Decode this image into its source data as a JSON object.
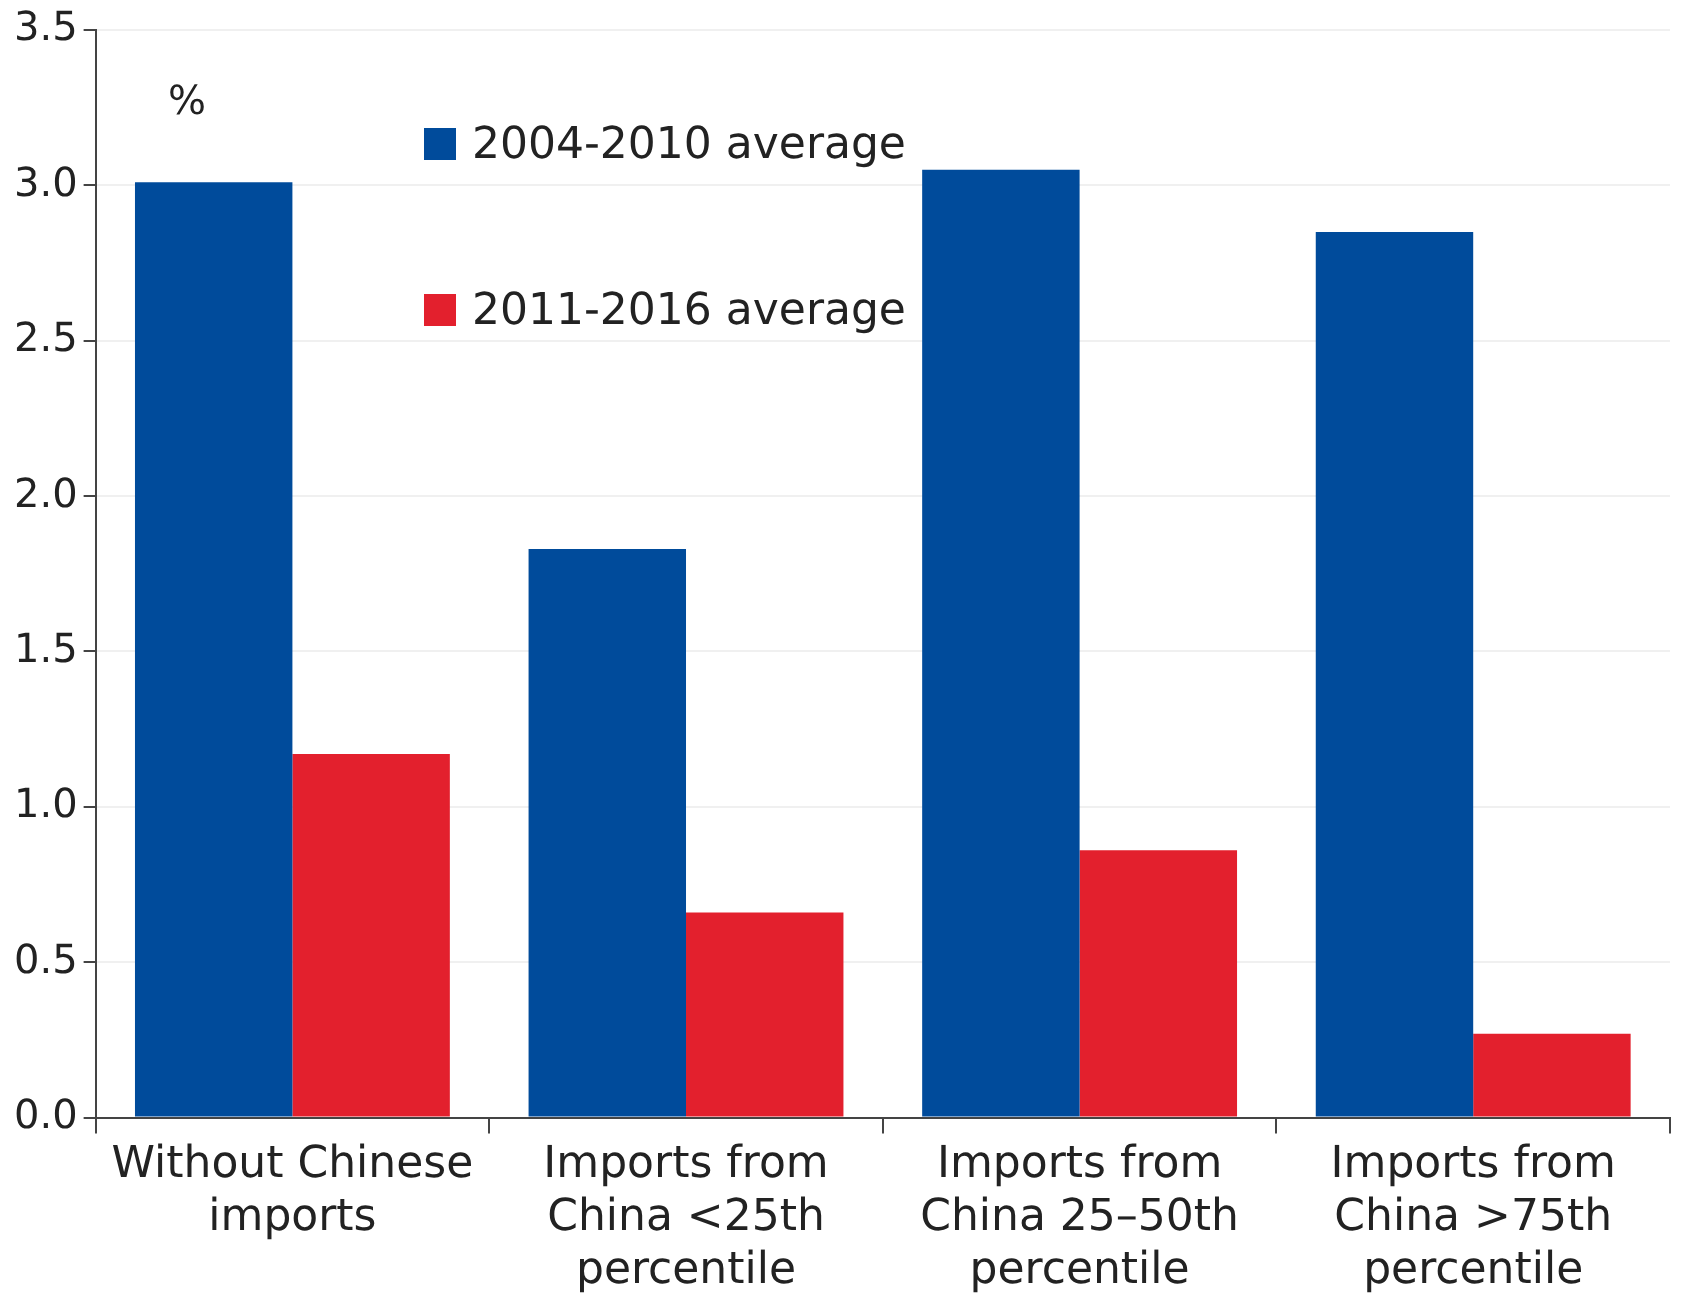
{
  "chart_data": {
    "type": "bar",
    "ylabel": "%",
    "categories": [
      "Without Chinese imports",
      "Imports from China <25th percentile",
      "Imports from China 25–50th percentile",
      "Imports from China >75th percentile"
    ],
    "series": [
      {
        "name": "2004-2010 average",
        "color": "#004b9b",
        "values": [
          3.01,
          1.83,
          3.05,
          2.85
        ]
      },
      {
        "name": "2011-2016 average",
        "color": "#e3202d",
        "values": [
          1.17,
          0.66,
          0.86,
          0.27
        ]
      }
    ],
    "ylim": [
      0,
      3.5
    ],
    "yticks": [
      {
        "value": 0,
        "label": "0.0"
      },
      {
        "value": 0.5,
        "label": "0.5"
      },
      {
        "value": 1,
        "label": "1.0"
      },
      {
        "value": 1.5,
        "label": "1.5"
      },
      {
        "value": 2,
        "label": "2.0"
      },
      {
        "value": 2.5,
        "label": "2.5"
      },
      {
        "value": 3,
        "label": "3.0"
      },
      {
        "value": 3.5,
        "label": "3.5"
      }
    ],
    "grid": "y",
    "legend": "top"
  }
}
